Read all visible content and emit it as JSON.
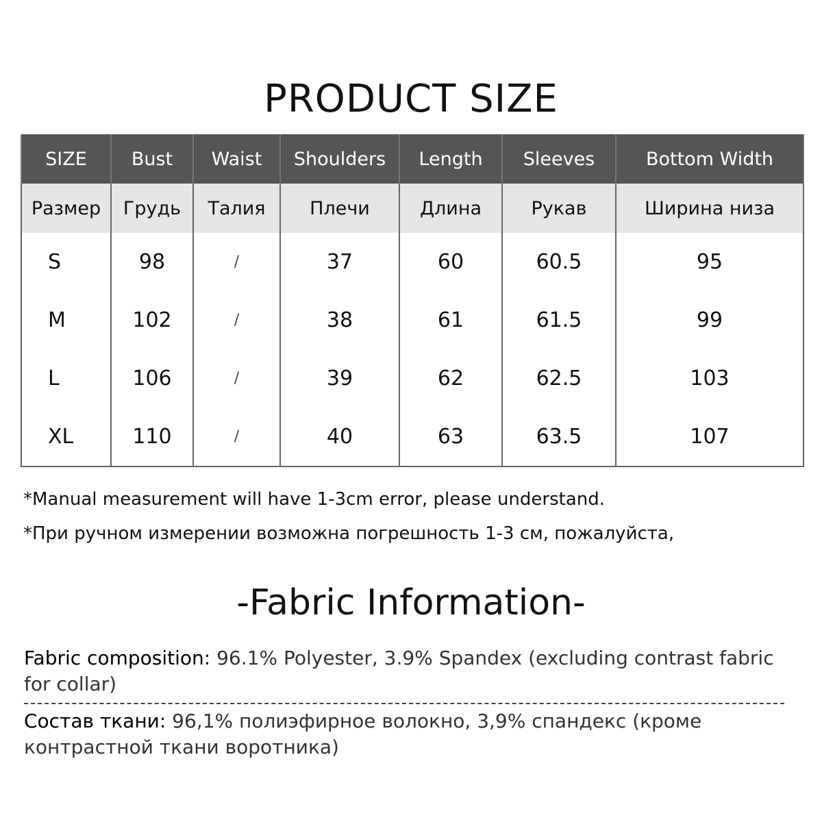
{
  "title": "PRODUCT SIZE",
  "table": {
    "headers_en": [
      "SIZE",
      "Bust",
      "Waist",
      "Shoulders",
      "Length",
      "Sleeves",
      "Bottom Width"
    ],
    "headers_ru": [
      "Размер",
      "Грудь",
      "Талия",
      "Плечи",
      "Длина",
      "Рукав",
      "Ширина низа"
    ],
    "rows": [
      [
        "S",
        "98",
        "/",
        "37",
        "60",
        "60.5",
        "95"
      ],
      [
        "M",
        "102",
        "/",
        "38",
        "61",
        "61.5",
        "99"
      ],
      [
        "L",
        "106",
        "/",
        "39",
        "62",
        "62.5",
        "103"
      ],
      [
        "XL",
        "110",
        "/",
        "40",
        "63",
        "63.5",
        "107"
      ]
    ],
    "header_bg": "#555555",
    "subheader_bg": "#e6e6e6"
  },
  "notes": {
    "en": "*Manual measurement will have 1-3cm error, please understand.",
    "ru": "*При ручном измерении возможна погрешность 1-3 см, пожалуйста,"
  },
  "fabric": {
    "title": "-Fabric Information-",
    "en_label": "Fabric composition:",
    "en_value": " 96.1% Polyester, 3.9% Spandex (excluding contrast fabric for collar)",
    "ru_label": "Состав ткани:",
    "ru_value": " 96,1% полиэфирное волокно, 3,9% спандекс (кроме контрастной ткани воротника)"
  }
}
